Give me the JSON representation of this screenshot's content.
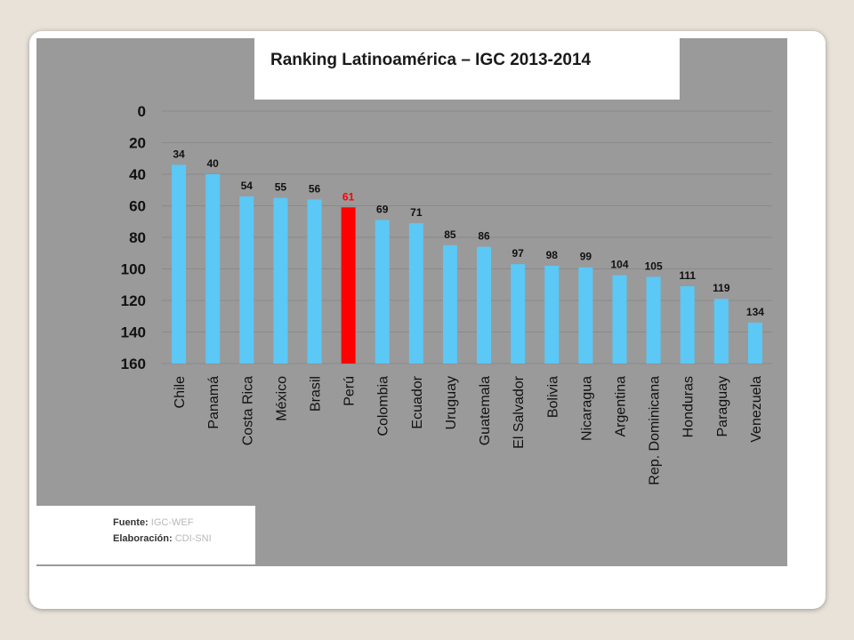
{
  "title": "Ranking Latinoamérica – IGC 2013-2014",
  "source": {
    "fuente_label": "Fuente:",
    "fuente_value": "IGC-WEF",
    "elaboracion_label": "Elaboración:",
    "elaboracion_value": "CDI-SNI"
  },
  "colors": {
    "bar": "#5bc8f5",
    "highlight": "#ff0000",
    "panel": "#9a9a9a",
    "text": "#111111"
  },
  "chart_data": {
    "type": "bar",
    "title": "Ranking Latinoamérica – IGC 2013-2014",
    "categories": [
      "Chile",
      "Panamá",
      "Costa Rica",
      "México",
      "Brasil",
      "Perú",
      "Colombia",
      "Ecuador",
      "Uruguay",
      "Guatemala",
      "El Salvador",
      "Bolivia",
      "Nicaragua",
      "Argentina",
      "Rep. Dominicana",
      "Honduras",
      "Paraguay",
      "Venezuela"
    ],
    "values": [
      34,
      40,
      54,
      55,
      56,
      61,
      69,
      71,
      85,
      86,
      97,
      98,
      99,
      104,
      105,
      111,
      119,
      134
    ],
    "highlight": "Perú",
    "ylim": [
      0,
      160
    ],
    "yaxis_inverted": true,
    "yticks": [
      0,
      20,
      40,
      60,
      80,
      100,
      120,
      140,
      160
    ],
    "data_labels": true,
    "grid": true,
    "legend": "none"
  }
}
